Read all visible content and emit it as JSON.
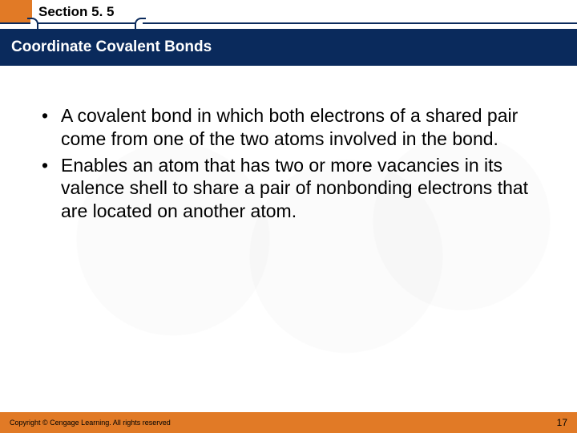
{
  "colors": {
    "accent_orange": "#e17a26",
    "band_navy": "#0a2a5c",
    "text_black": "#000000",
    "title_white": "#ffffff",
    "background": "#ffffff"
  },
  "typography": {
    "section_label_fontsize_pt": 13,
    "title_fontsize_pt": 15,
    "body_fontsize_pt": 17,
    "footer_fontsize_pt": 7
  },
  "header": {
    "section_label": "Section 5. 5"
  },
  "title": "Coordinate Covalent Bonds",
  "bullets": [
    "A covalent bond in which both electrons of a shared pair come from one of the two atoms involved in the bond.",
    "Enables an atom that has two or more vacancies in its valence shell to share a pair of nonbonding electrons that are located on another atom."
  ],
  "footer": {
    "copyright": "Copyright © Cengage Learning. All rights reserved",
    "page_number": "17"
  }
}
